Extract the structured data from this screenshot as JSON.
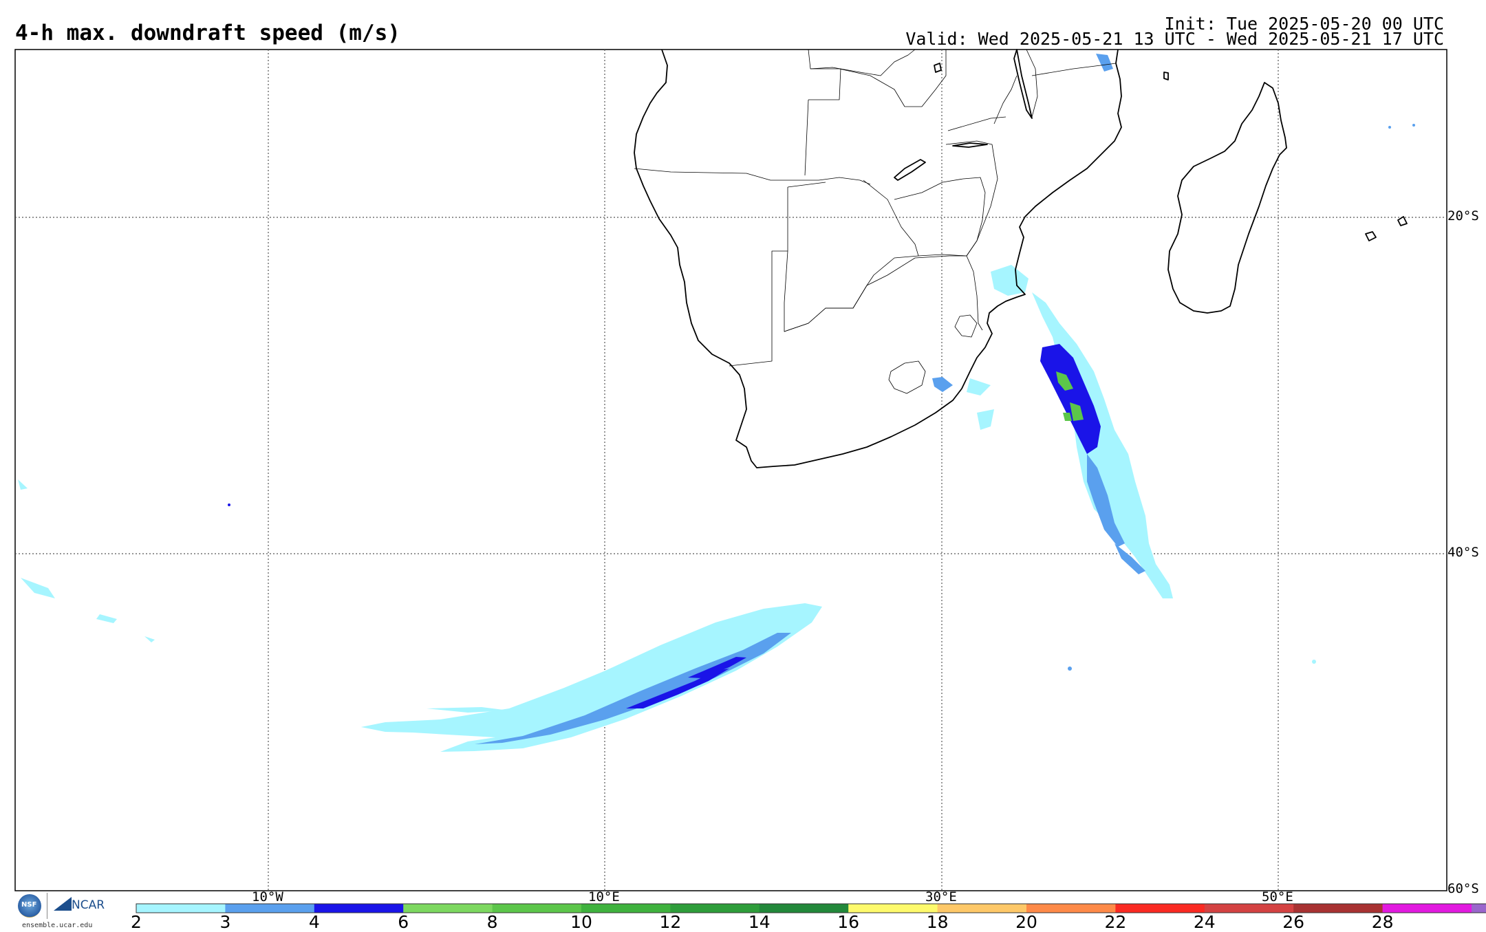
{
  "header": {
    "title": "4-h max. downdraft speed (m/s)",
    "init": "Init: Tue 2025-05-20 00 UTC",
    "valid": "Valid: Wed 2025-05-21 13 UTC - Wed 2025-05-21 17 UTC"
  },
  "map": {
    "projection": "cylindrical equidistant",
    "lon_range": [
      -25,
      60
    ],
    "lat_range": [
      -60,
      -10
    ],
    "lat_labels": [
      "20°S",
      "40°S",
      "60°S"
    ],
    "lon_labels": [
      "10°W",
      "10°E",
      "30°E",
      "50°E"
    ]
  },
  "colorbar": {
    "ticks": [
      "2",
      "3",
      "4",
      "6",
      "8",
      "10",
      "12",
      "14",
      "16",
      "18",
      "20",
      "22",
      "24",
      "26",
      "28"
    ],
    "colors": [
      "#a6f5ff",
      "#5aa0ee",
      "#1a14e8",
      "#7dd860",
      "#5cc64a",
      "#3fb23e",
      "#2e9d3a",
      "#22883a",
      "#fefa6c",
      "#fec868",
      "#fe8a48",
      "#fa2a22",
      "#d44242",
      "#a83232",
      "#e21ae0",
      "#9a66cc"
    ]
  },
  "logos": {
    "nsf": "NSF",
    "ncar": "NCAR",
    "site": "ensemble.ucar.edu"
  }
}
